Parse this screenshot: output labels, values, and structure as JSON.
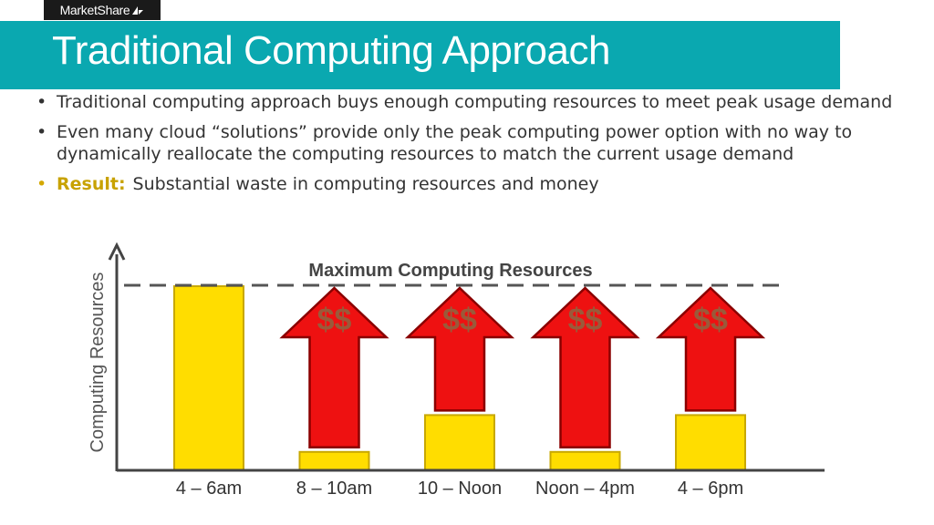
{
  "logo": {
    "text": "MarketShare",
    "icon": "marketshare-logo-icon"
  },
  "title": "Traditional Computing Approach",
  "bullets": [
    "Traditional computing approach buys enough computing resources to meet peak usage demand",
    "Even many cloud “solutions” provide only the peak computing power option with no way to dynamically reallocate the computing resources to match the current usage demand"
  ],
  "result": {
    "label": "Result:",
    "text": "Substantial waste in computing resources and money"
  },
  "colors": {
    "title_band": "#0aa8b0",
    "bar_fill": "#ffdd00",
    "bar_stroke": "#c8a800",
    "arrow_fill": "#ee1111",
    "arrow_stroke": "#8a0000",
    "dollar": "#9a5a3a"
  },
  "chart_data": {
    "type": "bar",
    "ylabel": "Computing Resources",
    "categories": [
      "4 – 6am",
      "8 – 10am",
      "10 – Noon",
      "Noon – 4pm",
      "4 – 6pm"
    ],
    "values": [
      100,
      10,
      30,
      10,
      30
    ],
    "ylim": [
      0,
      100
    ],
    "max_line": {
      "label": "Maximum Computing Resources",
      "value": 100
    },
    "waste_arrows": [
      {
        "category": "8 – 10am",
        "label": "$$"
      },
      {
        "category": "10 – Noon",
        "label": "$$"
      },
      {
        "category": "Noon – 4pm",
        "label": "$$"
      },
      {
        "category": "4 – 6pm",
        "label": "$$"
      }
    ]
  }
}
